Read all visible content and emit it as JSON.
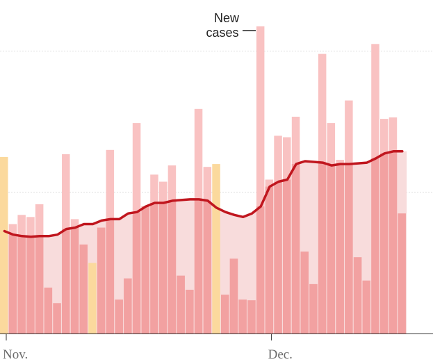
{
  "chart_data": {
    "type": "bar",
    "title": "",
    "xlabel": "",
    "ylabel": "",
    "x_ticks": [
      {
        "label": "Nov.",
        "index": 0
      },
      {
        "label": "Dec.",
        "index": 30
      }
    ],
    "gridlines": [
      200,
      400
    ],
    "ylim": [
      0,
      430
    ],
    "annotation": {
      "line1": "New",
      "line2": "cases"
    },
    "series": [
      {
        "name": "",
        "kind": "bars",
        "values": [
          250,
          155,
          168,
          165,
          183,
          65,
          43,
          254,
          162,
          126,
          100,
          150,
          260,
          48,
          78,
          298,
          180,
          225,
          215,
          238,
          82,
          62,
          318,
          236,
          240,
          55,
          106,
          48,
          47,
          435,
          218,
          280,
          278,
          307,
          116,
          70,
          396,
          298,
          246,
          330,
          108,
          75,
          410,
          304,
          306,
          170
        ],
        "highlight_color": "#fbd99d",
        "highlight_indices": [
          0,
          10,
          24
        ]
      },
      {
        "name": "",
        "kind": "line",
        "values": [
          145,
          140,
          138,
          137,
          138,
          138,
          140,
          148,
          150,
          155,
          155,
          160,
          162,
          162,
          170,
          172,
          180,
          185,
          185,
          188,
          189,
          190,
          190,
          188,
          178,
          172,
          168,
          165,
          170,
          180,
          208,
          215,
          218,
          240,
          244,
          243,
          242,
          238,
          240,
          240,
          241,
          242,
          248,
          255,
          258,
          258
        ],
        "color": "#c0161e"
      }
    ],
    "colors": {
      "bar": "#f9c2c2",
      "bar_under_line": "#f2a1a1",
      "average_fill": "#f8dcdc",
      "grid": "#dddddd",
      "axis": "#333333"
    }
  }
}
